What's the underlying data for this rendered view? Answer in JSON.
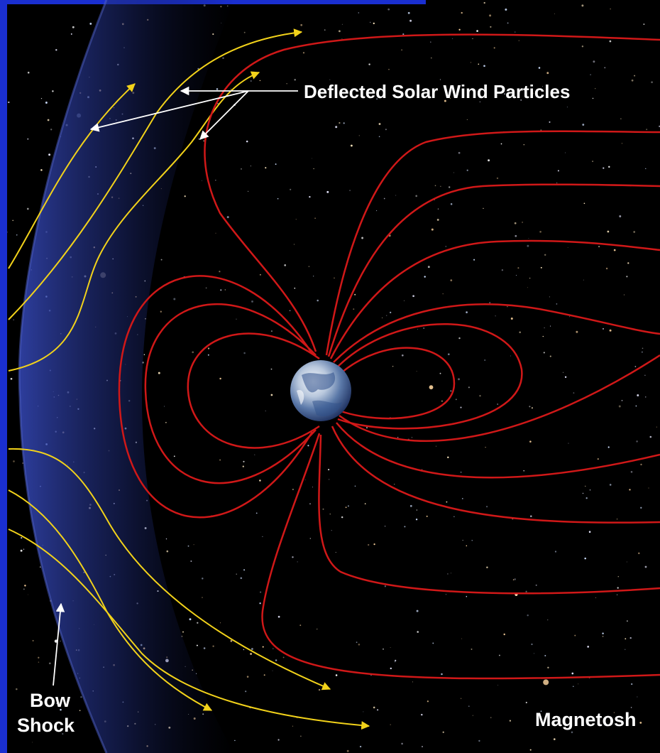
{
  "labels": {
    "deflected_particles": "Deflected Solar Wind Particles",
    "bow": "Bow",
    "shock": "Shock",
    "magnetosphere": "Magnetosh"
  },
  "colors": {
    "frame_blue": "#1a2fd0",
    "field_lines": "#d01818",
    "solar_wind": "#f2d21a",
    "bow_shock_haze": "#2a3c9a",
    "label_text": "#ffffff"
  },
  "icons": {
    "earth": "earth-globe-icon"
  }
}
